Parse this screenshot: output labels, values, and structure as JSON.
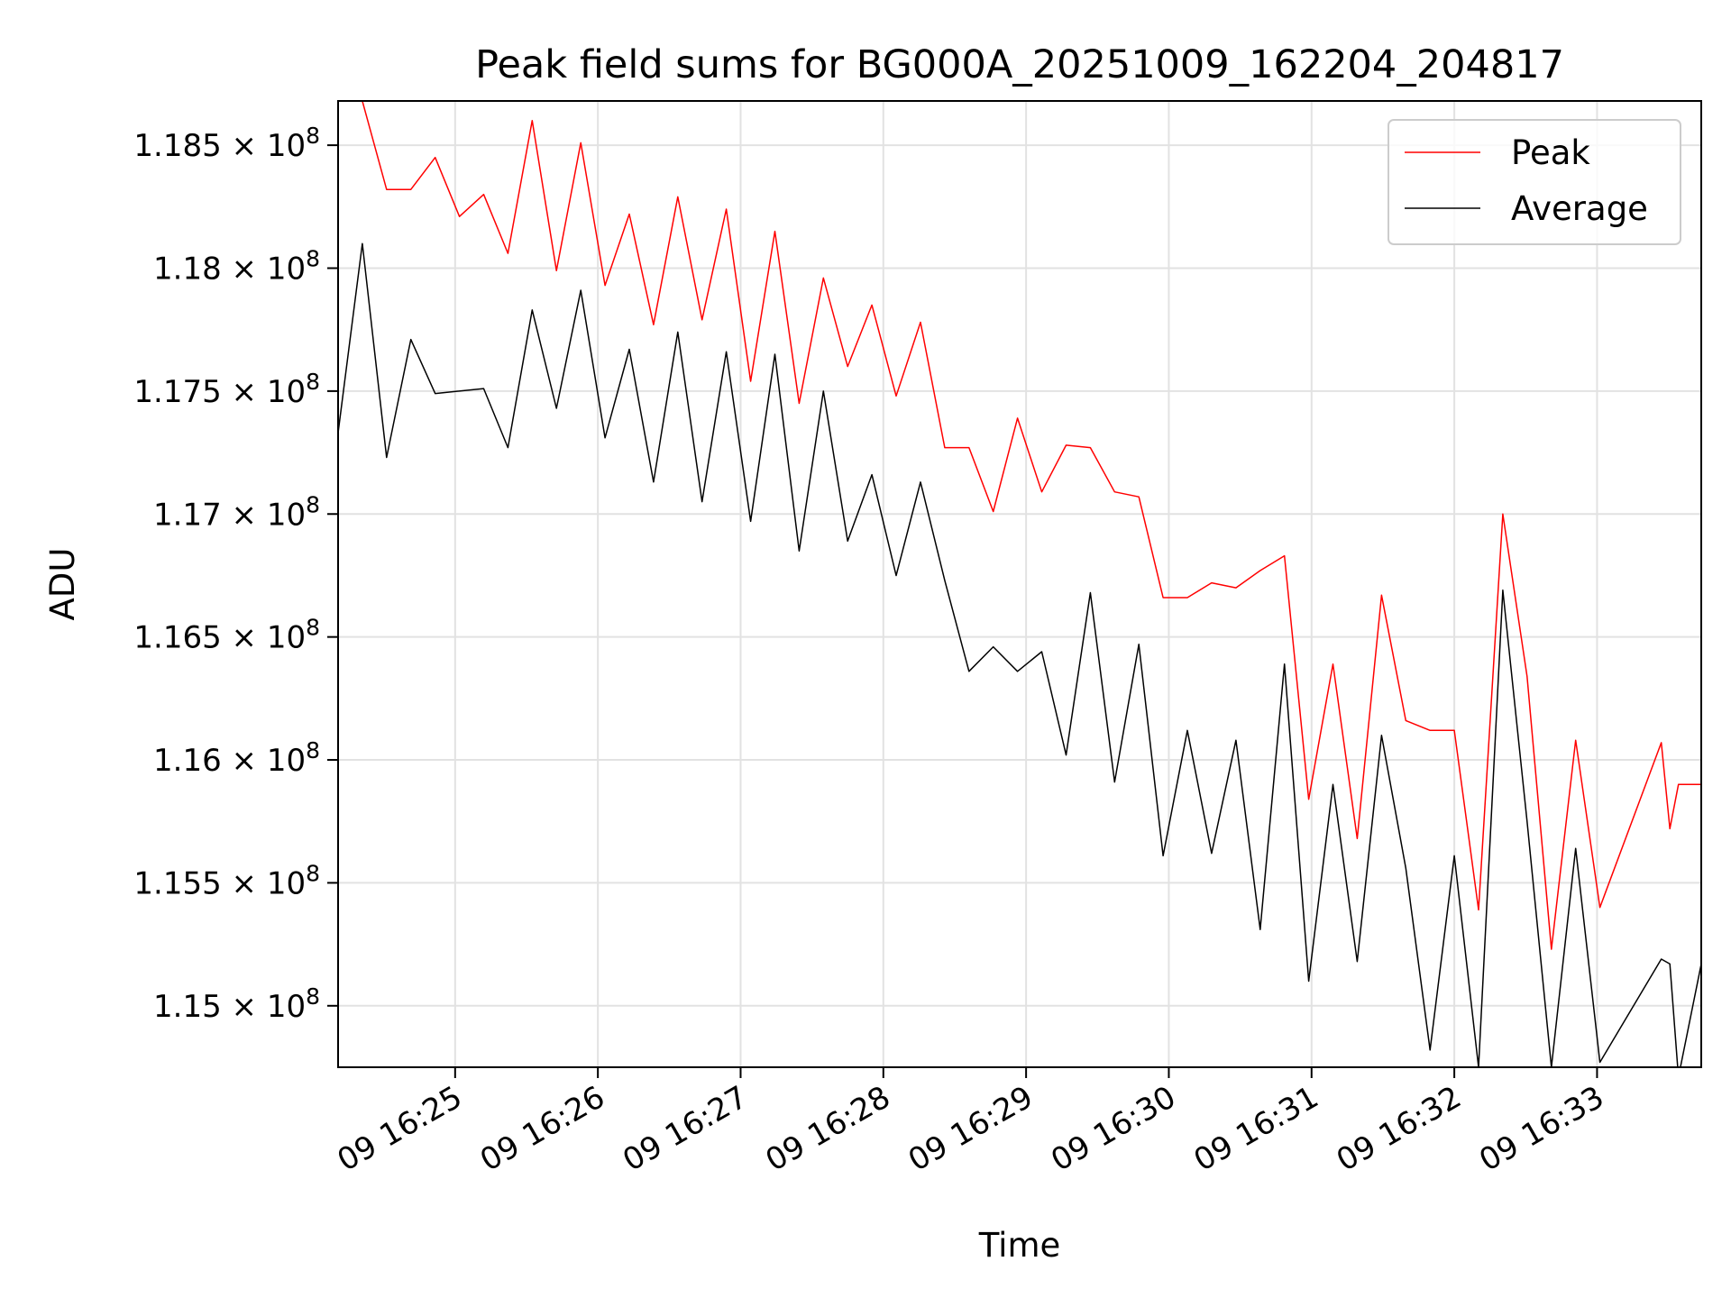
{
  "chart_data": {
    "type": "line",
    "title": "Peak field sums for BG000A_20251009_162204_204817",
    "xlabel": "Time",
    "ylabel": "ADU",
    "grid": true,
    "legend_position": "top-right",
    "x_unit": "minutes after 16:24",
    "xlim": [
      -0.82,
      8.73
    ],
    "ylim": [
      114.75,
      118.68
    ],
    "x_ticks": [
      0,
      1,
      2,
      3,
      4,
      5,
      6,
      7,
      8
    ],
    "x_tick_labels": [
      "09 16:25",
      "09 16:26",
      "09 16:27",
      "09 16:28",
      "09 16:29",
      "09 16:30",
      "09 16:31",
      "09 16:32",
      "09 16:33"
    ],
    "y_ticks": [
      115.0,
      115.5,
      116.0,
      116.5,
      117.0,
      117.5,
      118.0,
      118.5
    ],
    "y_tick_labels": [
      {
        "mantissa": "1.15",
        "times": "×",
        "base": "10",
        "exp": "8"
      },
      {
        "mantissa": "1.155",
        "times": "×",
        "base": "10",
        "exp": "8"
      },
      {
        "mantissa": "1.16",
        "times": "×",
        "base": "10",
        "exp": "8"
      },
      {
        "mantissa": "1.165",
        "times": "×",
        "base": "10",
        "exp": "8"
      },
      {
        "mantissa": "1.17",
        "times": "×",
        "base": "10",
        "exp": "8"
      },
      {
        "mantissa": "1.175",
        "times": "×",
        "base": "10",
        "exp": "8"
      },
      {
        "mantissa": "1.18",
        "times": "×",
        "base": "10",
        "exp": "8"
      },
      {
        "mantissa": "1.185",
        "times": "×",
        "base": "10",
        "exp": "8"
      }
    ],
    "y_scale_note": "values in units of 1e6 ADU",
    "series": [
      {
        "name": "Peak",
        "color": "#ff0000",
        "points": [
          [
            -0.82,
            118.68
          ],
          [
            -0.65,
            118.68
          ],
          [
            -0.48,
            118.32
          ],
          [
            -0.31,
            118.32
          ],
          [
            -0.14,
            118.45
          ],
          [
            0.03,
            118.21
          ],
          [
            0.2,
            118.3
          ],
          [
            0.37,
            118.06
          ],
          [
            0.54,
            118.6
          ],
          [
            0.71,
            117.99
          ],
          [
            0.88,
            118.51
          ],
          [
            1.05,
            117.93
          ],
          [
            1.22,
            118.22
          ],
          [
            1.39,
            117.77
          ],
          [
            1.56,
            118.29
          ],
          [
            1.73,
            117.79
          ],
          [
            1.9,
            118.24
          ],
          [
            2.07,
            117.54
          ],
          [
            2.24,
            118.15
          ],
          [
            2.41,
            117.45
          ],
          [
            2.58,
            117.96
          ],
          [
            2.75,
            117.6
          ],
          [
            2.92,
            117.85
          ],
          [
            3.09,
            117.48
          ],
          [
            3.26,
            117.78
          ],
          [
            3.43,
            117.27
          ],
          [
            3.6,
            117.27
          ],
          [
            3.77,
            117.01
          ],
          [
            3.94,
            117.39
          ],
          [
            4.11,
            117.09
          ],
          [
            4.28,
            117.28
          ],
          [
            4.45,
            117.27
          ],
          [
            4.62,
            117.09
          ],
          [
            4.79,
            117.07
          ],
          [
            4.96,
            116.66
          ],
          [
            5.13,
            116.66
          ],
          [
            5.3,
            116.72
          ],
          [
            5.47,
            116.7
          ],
          [
            5.64,
            116.77
          ],
          [
            5.81,
            116.83
          ],
          [
            5.98,
            115.84
          ],
          [
            6.15,
            116.39
          ],
          [
            6.32,
            115.68
          ],
          [
            6.49,
            116.67
          ],
          [
            6.66,
            116.16
          ],
          [
            6.83,
            116.12
          ],
          [
            7.0,
            116.12
          ],
          [
            7.17,
            115.39
          ],
          [
            7.34,
            117.0
          ],
          [
            7.51,
            116.34
          ],
          [
            7.68,
            115.23
          ],
          [
            7.85,
            116.08
          ],
          [
            8.02,
            115.4
          ],
          [
            8.45,
            116.07
          ],
          [
            8.51,
            115.72
          ],
          [
            8.57,
            115.9
          ],
          [
            8.73,
            115.9
          ]
        ]
      },
      {
        "name": "Average",
        "color": "#000000",
        "points": [
          [
            -0.82,
            117.33
          ],
          [
            -0.65,
            118.1
          ],
          [
            -0.48,
            117.23
          ],
          [
            -0.31,
            117.71
          ],
          [
            -0.14,
            117.49
          ],
          [
            0.2,
            117.51
          ],
          [
            0.37,
            117.27
          ],
          [
            0.54,
            117.83
          ],
          [
            0.71,
            117.43
          ],
          [
            0.88,
            117.91
          ],
          [
            1.05,
            117.31
          ],
          [
            1.22,
            117.67
          ],
          [
            1.39,
            117.13
          ],
          [
            1.56,
            117.74
          ],
          [
            1.73,
            117.05
          ],
          [
            1.9,
            117.66
          ],
          [
            2.07,
            116.97
          ],
          [
            2.24,
            117.65
          ],
          [
            2.41,
            116.85
          ],
          [
            2.58,
            117.5
          ],
          [
            2.75,
            116.89
          ],
          [
            2.92,
            117.16
          ],
          [
            3.09,
            116.75
          ],
          [
            3.26,
            117.13
          ],
          [
            3.43,
            116.73
          ],
          [
            3.6,
            116.36
          ],
          [
            3.77,
            116.46
          ],
          [
            3.94,
            116.36
          ],
          [
            4.11,
            116.44
          ],
          [
            4.28,
            116.02
          ],
          [
            4.45,
            116.68
          ],
          [
            4.62,
            115.91
          ],
          [
            4.79,
            116.47
          ],
          [
            4.96,
            115.61
          ],
          [
            5.13,
            116.12
          ],
          [
            5.3,
            115.62
          ],
          [
            5.47,
            116.08
          ],
          [
            5.64,
            115.31
          ],
          [
            5.81,
            116.39
          ],
          [
            5.98,
            115.1
          ],
          [
            6.15,
            115.9
          ],
          [
            6.32,
            115.18
          ],
          [
            6.49,
            116.1
          ],
          [
            6.66,
            115.56
          ],
          [
            6.83,
            114.82
          ],
          [
            7.0,
            115.61
          ],
          [
            7.17,
            114.75
          ],
          [
            7.34,
            116.69
          ],
          [
            7.51,
            115.75
          ],
          [
            7.68,
            114.75
          ],
          [
            7.85,
            115.64
          ],
          [
            8.02,
            114.77
          ],
          [
            8.45,
            115.19
          ],
          [
            8.51,
            115.17
          ],
          [
            8.57,
            114.71
          ],
          [
            8.73,
            115.17
          ]
        ]
      }
    ]
  }
}
